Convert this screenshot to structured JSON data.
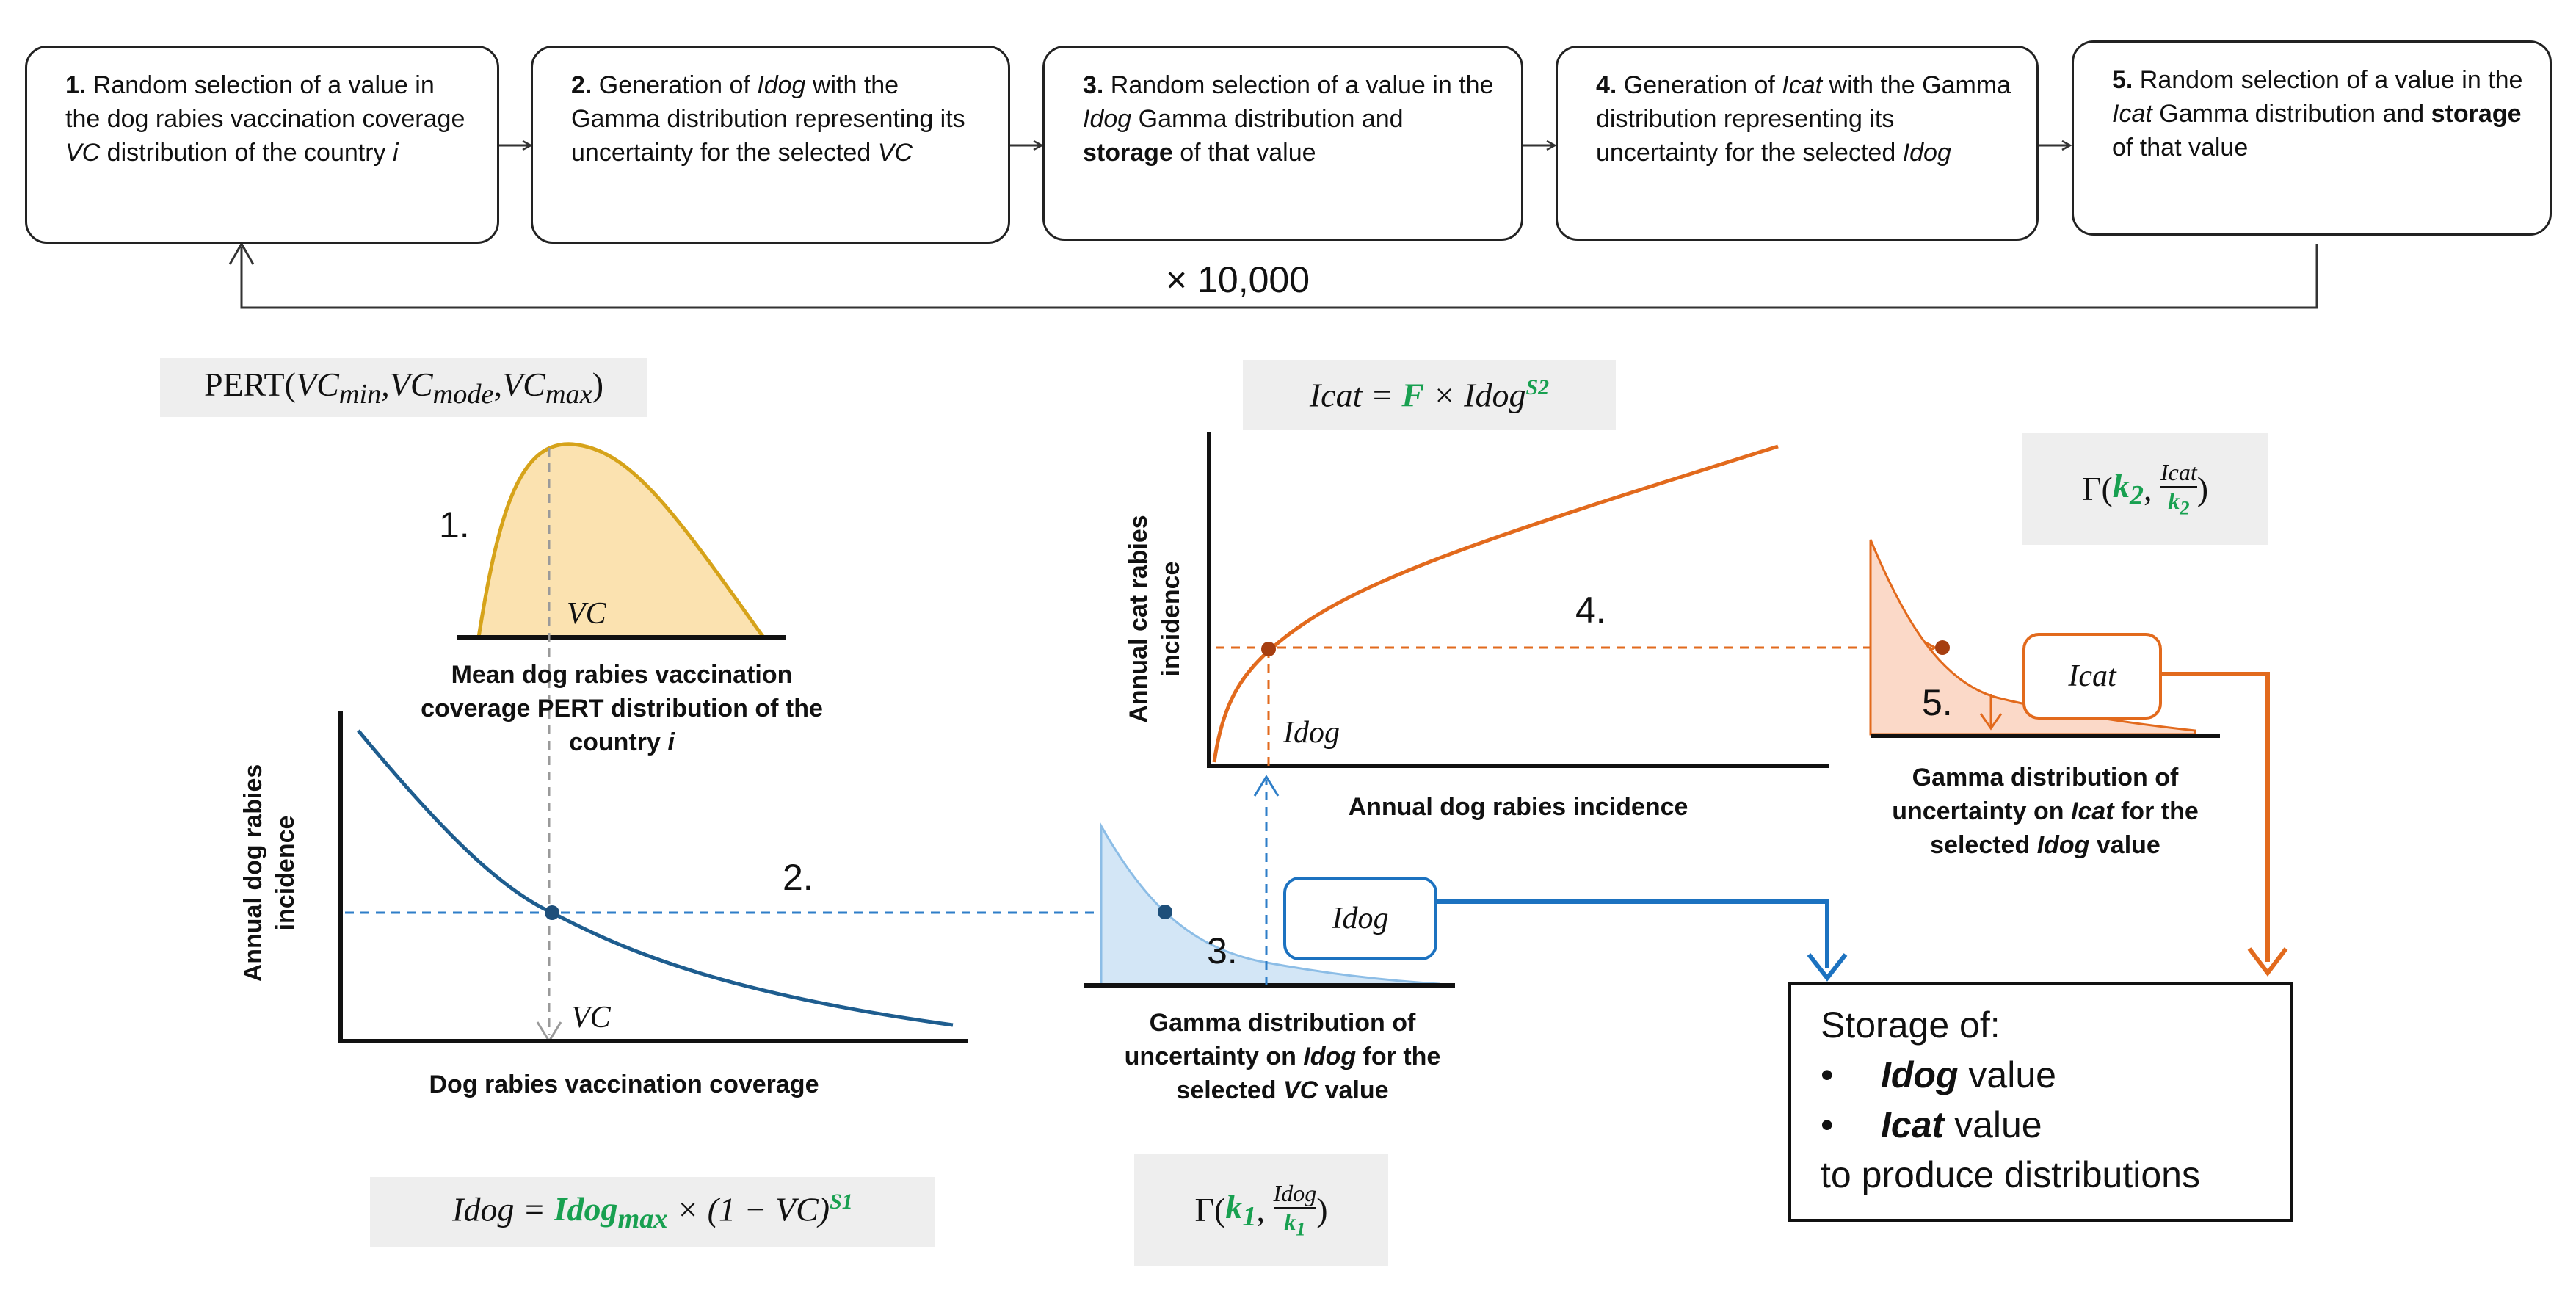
{
  "steps": [
    {
      "num": "1.",
      "pre": " Random selection of a value in the dog rabies vaccination coverage ",
      "em": "VC",
      "post": " distribution of the country ",
      "em2": "i"
    },
    {
      "num": "2.",
      "pre": " Generation of ",
      "em": "Idog",
      "post": " with the Gamma distribution representing its uncertainty for the selected ",
      "em2": "VC"
    },
    {
      "num": "3.",
      "pre": " Random selection of a value in the ",
      "em": "Idog",
      "post": " Gamma distribution and ",
      "strong": "storage",
      "tail": " of that value"
    },
    {
      "num": "4.",
      "pre": " Generation of ",
      "em": "Icat",
      "post": " with the Gamma distribution representing its uncertainty for the selected ",
      "em2": "Idog"
    },
    {
      "num": "5.",
      "pre": " Random selection of a value in the ",
      "em": "Icat",
      "post": " Gamma distribution and ",
      "strong": "storage",
      "tail": " of that value"
    }
  ],
  "loop_label": "× 10,000",
  "formulas": {
    "pert": "PERT(VCmin,VCmode,VCmax)",
    "icat": "Icat = F × Idog^S2",
    "gamma_cat": "Γ(k2, Icat/k2)",
    "idog": "Idog = Idogmax × (1 − VC)^S1",
    "gamma_dog": "Γ(k1, Idog/k1)"
  },
  "labels": {
    "pert_step": "1.",
    "pert_vc": "VC",
    "pert_caption": "Mean dog rabies vaccination coverage PERT distribution of the country",
    "pert_caption_i": "i",
    "dog_y_axis": "Annual dog rabies incidence",
    "dog_x_axis": "Dog rabies vaccination coverage",
    "dog_vc": "VC",
    "step2": "2.",
    "step3": "3.",
    "idog_tag": "Idog",
    "gamma_dog_caption_a": "Gamma distribution of uncertainty on ",
    "gamma_dog_caption_em": "Idog",
    "gamma_dog_caption_b": " for the selected ",
    "gamma_dog_caption_em2": "VC",
    "gamma_dog_caption_c": " value",
    "cat_y_axis": "Annual cat rabies incidence",
    "cat_x_axis": "Annual dog rabies incidence",
    "cat_idog": "Idog",
    "step4": "4.",
    "step5": "5.",
    "icat_tag": "Icat",
    "gamma_cat_caption_a": "Gamma distribution of uncertainty on ",
    "gamma_cat_caption_em": "Icat",
    "gamma_cat_caption_b": " for the selected ",
    "gamma_cat_caption_em2": "Idog",
    "gamma_cat_caption_c": " value"
  },
  "storage": {
    "title": "Storage of:",
    "items": [
      {
        "bullet": "•",
        "em": "Idog",
        "text": " value"
      },
      {
        "bullet": "•",
        "em": "Icat",
        "text": " value"
      }
    ],
    "footer": "to produce distributions"
  },
  "colors": {
    "pert_fill": "#fbe2b0",
    "pert_line": "#d6a31a",
    "dog_curve": "#1e5d8f",
    "blue_dash": "#2e7ec8",
    "gamma_dog_fill": "#d3e6f6",
    "cat_curve": "#e26a1d",
    "gamma_cat_fill": "#fbd9c8",
    "formula_green": "#18a050"
  }
}
